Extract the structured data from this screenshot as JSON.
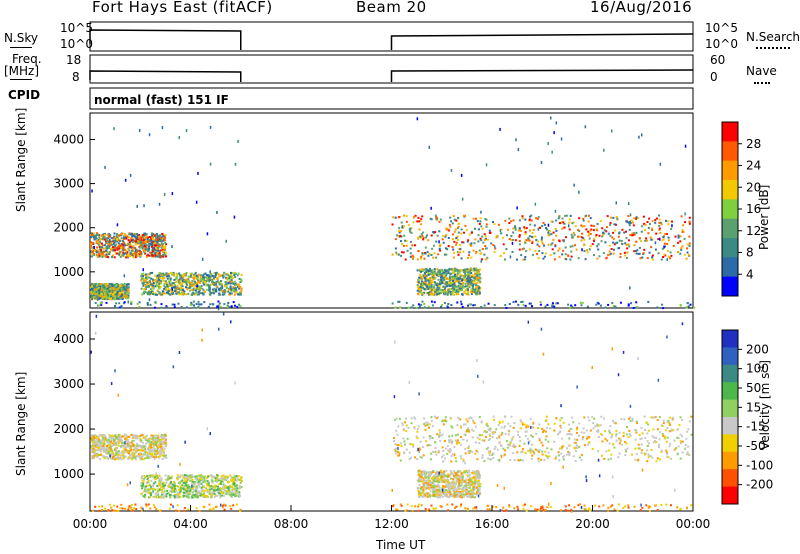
{
  "header": {
    "station": "Fort Hays East (fitACF)",
    "beam": "Beam 20",
    "date": "16/Aug/2016"
  },
  "left_labels": {
    "nsky": "N.Sky",
    "freq": "Freq.",
    "freq_unit": "[MHz]",
    "cpid": "CPID"
  },
  "right_labels": {
    "nsearch": "N.Search",
    "nave": "Nave"
  },
  "noise_axis": {
    "left_top": "10^5",
    "left_bottom": "10^0",
    "right_top": "10^5",
    "right_bottom": "10^0"
  },
  "freq_axis": {
    "top": "18",
    "bottom": "8"
  },
  "nave_axis": {
    "top": "60",
    "bottom": "0"
  },
  "cpid_text": "normal (fast) 151 IF",
  "chart_data": [
    {
      "type": "heatmap",
      "title": "",
      "ylabel": "Slant Range [km]",
      "xlabel": "Time UT",
      "ylim": [
        180,
        4600
      ],
      "yticks": [
        1000,
        2000,
        3000,
        4000
      ],
      "xticks": [
        "00:00",
        "04:00",
        "08:00",
        "12:00",
        "16:00",
        "20:00",
        "00:00"
      ],
      "colorbar": {
        "label": "Power [dB]",
        "ticks": [
          "28",
          "24",
          "20",
          "16",
          "12",
          "8",
          "4"
        ],
        "colors": [
          "#ff0000",
          "#ff5a00",
          "#ff9a00",
          "#f2c800",
          "#7fcf3f",
          "#5aa070",
          "#3c8a84",
          "#2c6aa8",
          "#0000ff"
        ]
      },
      "data_gaps_ut": [
        [
          6,
          12
        ]
      ],
      "scatter_bands": [
        {
          "t": [
            0.0,
            3.0
          ],
          "range": [
            1350,
            1900
          ],
          "level": "high"
        },
        {
          "t": [
            2.0,
            6.0
          ],
          "range": [
            500,
            1000
          ],
          "level": "mid"
        },
        {
          "t": [
            0.0,
            1.5
          ],
          "range": [
            400,
            750
          ],
          "level": "mid"
        },
        {
          "t": [
            12.0,
            23.9
          ],
          "range": [
            1300,
            2300
          ],
          "level": "high"
        },
        {
          "t": [
            13.0,
            15.5
          ],
          "range": [
            500,
            1100
          ],
          "level": "mid"
        }
      ]
    },
    {
      "type": "heatmap",
      "title": "",
      "ylabel": "Slant Range [km]",
      "xlabel": "Time UT",
      "ylim": [
        180,
        4600
      ],
      "yticks": [
        1000,
        2000,
        3000,
        4000
      ],
      "xticks": [
        "00:00",
        "04:00",
        "08:00",
        "12:00",
        "16:00",
        "20:00",
        "00:00"
      ],
      "colorbar": {
        "label": "Velocity [m s^-1]",
        "ticks": [
          "200",
          "100",
          "50",
          "15",
          "-15",
          "-50",
          "-100",
          "-200"
        ],
        "colors": [
          "#2030c0",
          "#3060c0",
          "#3c8a84",
          "#4cb84c",
          "#90d060",
          "#c8c8c8",
          "#f0d000",
          "#ff9a00",
          "#ff5000",
          "#ff0000"
        ]
      },
      "data_gaps_ut": [
        [
          6,
          12
        ]
      ],
      "scatter_bands": [
        {
          "t": [
            0.0,
            3.0
          ],
          "range": [
            1350,
            1900
          ],
          "level": "grey"
        },
        {
          "t": [
            2.0,
            6.0
          ],
          "range": [
            500,
            1000
          ],
          "level": "green"
        },
        {
          "t": [
            12.0,
            23.9
          ],
          "range": [
            1300,
            2300
          ],
          "level": "grey"
        },
        {
          "t": [
            13.0,
            15.5
          ],
          "range": [
            500,
            1100
          ],
          "level": "grey"
        }
      ]
    }
  ]
}
